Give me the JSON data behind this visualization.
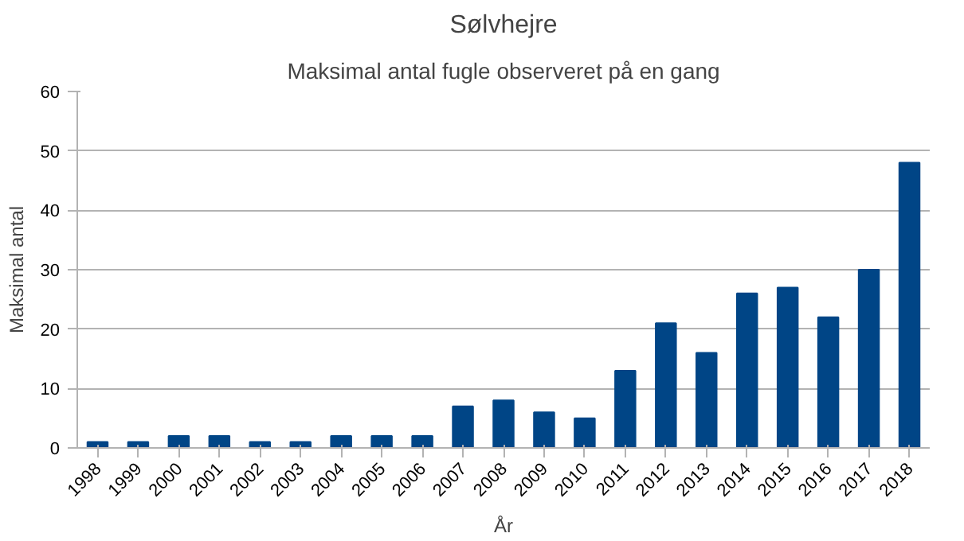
{
  "chart_data": {
    "type": "bar",
    "title": "Sølvhejre",
    "subtitle": "Maksimal antal fugle observeret på en gang",
    "xlabel": "År",
    "ylabel": "Maksimal antal",
    "categories": [
      "1998",
      "1999",
      "2000",
      "2001",
      "2002",
      "2003",
      "2004",
      "2005",
      "2006",
      "2007",
      "2008",
      "2009",
      "2010",
      "2011",
      "2012",
      "2013",
      "2014",
      "2015",
      "2016",
      "2017",
      "2018"
    ],
    "values": [
      1,
      1,
      2,
      2,
      1,
      1,
      2,
      2,
      2,
      7,
      8,
      6,
      5,
      13,
      21,
      16,
      26,
      27,
      22,
      30,
      48
    ],
    "color": "#004586",
    "ylim": [
      0,
      60
    ],
    "yticks": [
      0,
      10,
      20,
      30,
      40,
      50,
      60
    ],
    "grid": "y"
  }
}
